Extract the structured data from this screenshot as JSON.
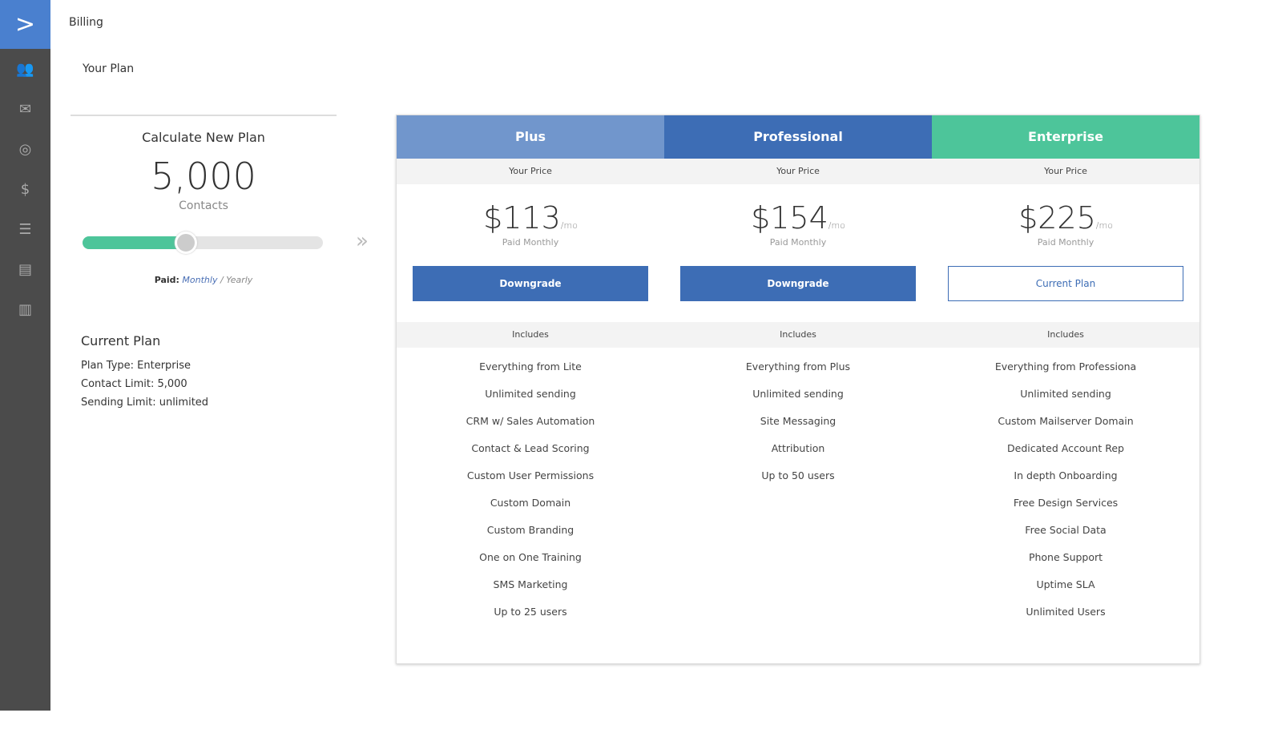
{
  "sidebar": {
    "items": [
      "contacts-icon",
      "campaigns-icon",
      "automations-icon",
      "deals-icon",
      "lists-icon",
      "forms-icon",
      "reports-icon"
    ]
  },
  "header": {
    "title": "Billing",
    "subtitle": "Your Plan"
  },
  "calculator": {
    "title": "Calculate New Plan",
    "count": "5,000",
    "unit": "Contacts",
    "slider_percent": 43,
    "paid_label": "Paid:",
    "monthly": "Monthly",
    "sep": "/",
    "yearly": "Yearly"
  },
  "current": {
    "title": "Current Plan",
    "plan_type": "Plan Type: Enterprise",
    "contact_limit": "Contact Limit: 5,000",
    "sending_limit": "Sending Limit: unlimited"
  },
  "colors": {
    "plus": "#7196cc",
    "professional": "#3d6db5",
    "enterprise": "#4dc59a"
  },
  "plans": [
    {
      "name": "Plus",
      "your_price": "Your Price",
      "price": "$113",
      "per": "/mo",
      "billing": "Paid Monthly",
      "button": "Downgrade",
      "includes": "Includes",
      "features": [
        "Everything from Lite",
        "Unlimited sending",
        "CRM w/ Sales Automation",
        "Contact & Lead Scoring",
        "Custom User Permissions",
        "Custom Domain",
        "Custom Branding",
        "One on One Training",
        "SMS Marketing",
        "Up to 25 users"
      ]
    },
    {
      "name": "Professional",
      "your_price": "Your Price",
      "price": "$154",
      "per": "/mo",
      "billing": "Paid Monthly",
      "button": "Downgrade",
      "includes": "Includes",
      "features": [
        "Everything from Plus",
        "Unlimited sending",
        "Site Messaging",
        "Attribution",
        "Up to 50 users"
      ]
    },
    {
      "name": "Enterprise",
      "your_price": "Your Price",
      "price": "$225",
      "per": "/mo",
      "billing": "Paid Monthly",
      "button": "Current Plan",
      "includes": "Includes",
      "features": [
        "Everything from Professiona",
        "Unlimited sending",
        "Custom Mailserver Domain",
        "Dedicated Account Rep",
        "In depth Onboarding",
        "Free Design Services",
        "Free Social Data",
        "Phone Support",
        "Uptime SLA",
        "Unlimited Users"
      ]
    }
  ]
}
